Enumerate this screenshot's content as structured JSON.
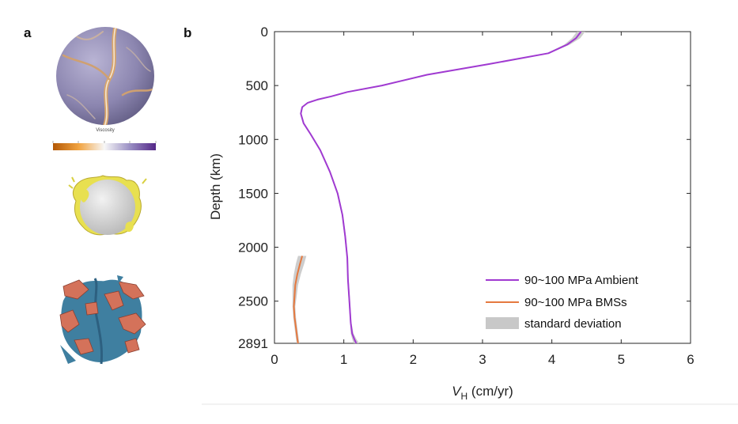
{
  "panels": {
    "a": {
      "label": "a",
      "colorbar_label": "Viscosity"
    },
    "b": {
      "label": "b"
    }
  },
  "colors": {
    "ambient": "#a03ad1",
    "bmss": "#e5793f",
    "std": "#c8c8c8",
    "sphere_base": "#8c86b0",
    "ridge": "#d9a56a",
    "shell": "#e8e050",
    "core": "#d7d7d7",
    "slab_orange": "#d4725a",
    "slab_blue": "#3f7fa0"
  },
  "chart_data": {
    "type": "line",
    "title": "",
    "xlabel_main": "V",
    "xlabel_sub": "H",
    "xlabel_unit": " (cm/yr)",
    "ylabel": "Depth (km)",
    "xlim": [
      0,
      6
    ],
    "ylim": [
      0,
      2891
    ],
    "y_reversed": true,
    "x_ticks": [
      0,
      1,
      2,
      3,
      4,
      5,
      6
    ],
    "y_ticks": [
      0,
      500,
      1000,
      1500,
      2000,
      2500,
      2891
    ],
    "grid": false,
    "legend_position": "lower-right",
    "series": [
      {
        "name": "90~100 MPa Ambient",
        "color_key": "ambient",
        "depth": [
          0,
          60,
          120,
          200,
          300,
          400,
          500,
          560,
          600,
          630,
          660,
          700,
          760,
          850,
          950,
          1100,
          1300,
          1500,
          1700,
          1900,
          2100,
          2300,
          2500,
          2700,
          2800,
          2850,
          2891
        ],
        "velocity": [
          4.42,
          4.35,
          4.22,
          3.95,
          3.1,
          2.2,
          1.55,
          1.05,
          0.82,
          0.62,
          0.48,
          0.4,
          0.38,
          0.42,
          0.52,
          0.66,
          0.8,
          0.91,
          0.98,
          1.02,
          1.05,
          1.06,
          1.08,
          1.1,
          1.12,
          1.15,
          1.18
        ],
        "std": [
          0.06,
          0.06,
          0.04,
          0.02,
          0.01,
          0.01,
          0.01,
          0.01,
          0.01,
          0.01,
          0.01,
          0.01,
          0.01,
          0.01,
          0.01,
          0.01,
          0.01,
          0.01,
          0.01,
          0.01,
          0.01,
          0.01,
          0.01,
          0.01,
          0.02,
          0.03,
          0.04
        ]
      },
      {
        "name": "90~100 MPa BMSs",
        "color_key": "bmss",
        "depth": [
          2080,
          2150,
          2250,
          2350,
          2450,
          2550,
          2650,
          2750,
          2850,
          2891
        ],
        "velocity": [
          0.4,
          0.37,
          0.33,
          0.3,
          0.29,
          0.28,
          0.29,
          0.31,
          0.33,
          0.34
        ],
        "std": [
          0.06,
          0.06,
          0.05,
          0.04,
          0.03,
          0.02,
          0.02,
          0.02,
          0.02,
          0.02
        ]
      }
    ],
    "legend_entries": [
      "90~100 MPa Ambient",
      "90~100 MPa BMSs",
      "standard deviation"
    ]
  }
}
